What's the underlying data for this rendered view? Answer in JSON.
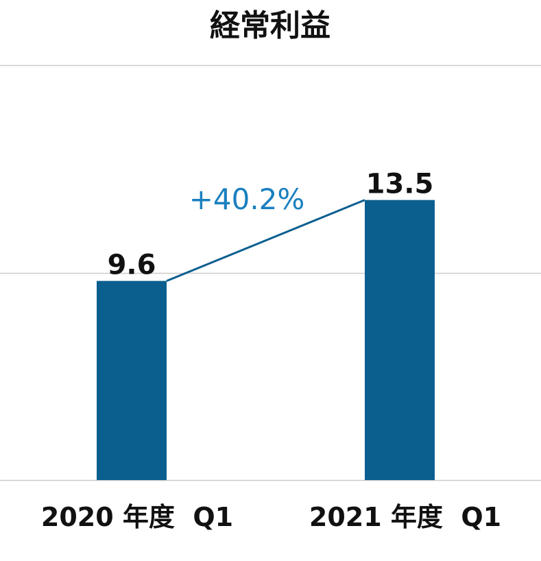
{
  "chart_data": {
    "type": "bar",
    "title": "経常利益",
    "categories": [
      "2020 年度  Q1",
      "2021 年度  Q1"
    ],
    "values": [
      9.6,
      13.5
    ],
    "value_labels": [
      "9.6",
      "13.5"
    ],
    "ylim": [
      0,
      20
    ],
    "gridlines": [
      0,
      10,
      20
    ],
    "grid": true,
    "annotation": {
      "text": "+40.2%",
      "from_category": 0,
      "to_category": 1
    },
    "colors": {
      "bar": "#0b5f8f",
      "connector": "#0b5f8f",
      "annotation": "#1a7fbf",
      "grid": "#cccccc"
    }
  }
}
